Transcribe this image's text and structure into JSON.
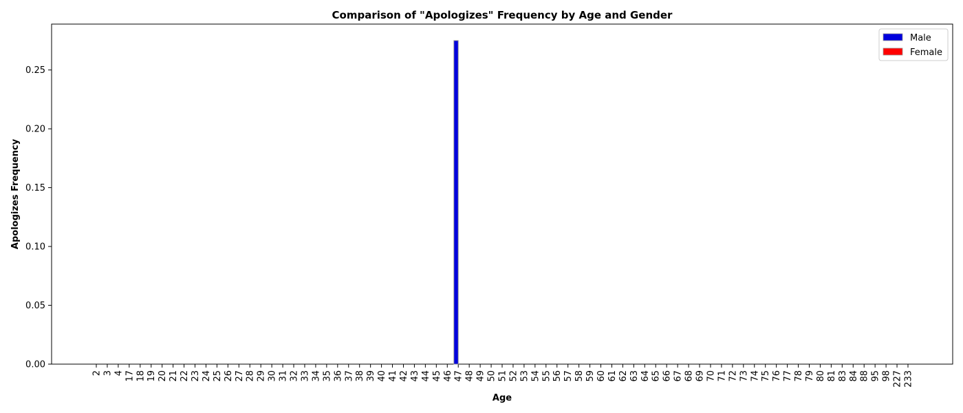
{
  "chart_data": {
    "type": "bar",
    "title": "Comparison of \"Apologizes\" Frequency by Age and Gender",
    "xlabel": "Age",
    "ylabel": "Apologizes Frequency",
    "categories": [
      "2",
      "3",
      "4",
      "17",
      "18",
      "19",
      "20",
      "21",
      "22",
      "23",
      "24",
      "25",
      "26",
      "27",
      "28",
      "29",
      "30",
      "31",
      "32",
      "33",
      "34",
      "35",
      "36",
      "37",
      "38",
      "39",
      "40",
      "41",
      "42",
      "43",
      "44",
      "45",
      "46",
      "47",
      "48",
      "49",
      "50",
      "51",
      "52",
      "53",
      "54",
      "55",
      "56",
      "57",
      "58",
      "59",
      "60",
      "61",
      "62",
      "63",
      "64",
      "65",
      "66",
      "67",
      "68",
      "69",
      "70",
      "71",
      "72",
      "73",
      "74",
      "75",
      "76",
      "77",
      "78",
      "79",
      "80",
      "81",
      "83",
      "84",
      "88",
      "95",
      "98",
      "227",
      "233"
    ],
    "series": [
      {
        "name": "Male",
        "color": "#0000dd",
        "values": [
          0,
          0,
          0,
          0,
          0,
          0,
          0,
          0,
          0,
          0,
          0,
          0,
          0,
          0,
          0,
          0,
          0,
          0,
          0,
          0,
          0,
          0,
          0,
          0,
          0,
          0,
          0,
          0,
          0,
          0,
          0,
          0,
          0,
          0.275,
          0,
          0,
          0,
          0,
          0,
          0,
          0,
          0,
          0,
          0,
          0,
          0,
          0,
          0,
          0,
          0,
          0,
          0,
          0,
          0,
          0,
          0,
          0,
          0,
          0,
          0,
          0,
          0,
          0,
          0,
          0,
          0,
          0,
          0,
          0,
          0,
          0,
          0,
          0,
          0,
          0
        ]
      },
      {
        "name": "Female",
        "color": "#ff0000",
        "values": [
          0,
          0,
          0,
          0,
          0,
          0,
          0,
          0,
          0,
          0,
          0,
          0,
          0,
          0,
          0,
          0,
          0,
          0,
          0,
          0,
          0,
          0,
          0,
          0,
          0,
          0,
          0,
          0,
          0,
          0,
          0,
          0,
          0,
          0,
          0,
          0,
          0,
          0,
          0,
          0,
          0,
          0,
          0,
          0,
          0,
          0,
          0,
          0,
          0,
          0,
          0,
          0,
          0,
          0,
          0,
          0,
          0,
          0,
          0,
          0,
          0,
          0,
          0,
          0,
          0,
          0,
          0,
          0,
          0,
          0,
          0,
          0,
          0,
          0,
          0
        ]
      }
    ],
    "yticks": [
      "0.00",
      "0.05",
      "0.10",
      "0.15",
      "0.20",
      "0.25"
    ],
    "ylim": [
      0,
      0.289
    ],
    "grid": false,
    "legend": "top-right"
  }
}
